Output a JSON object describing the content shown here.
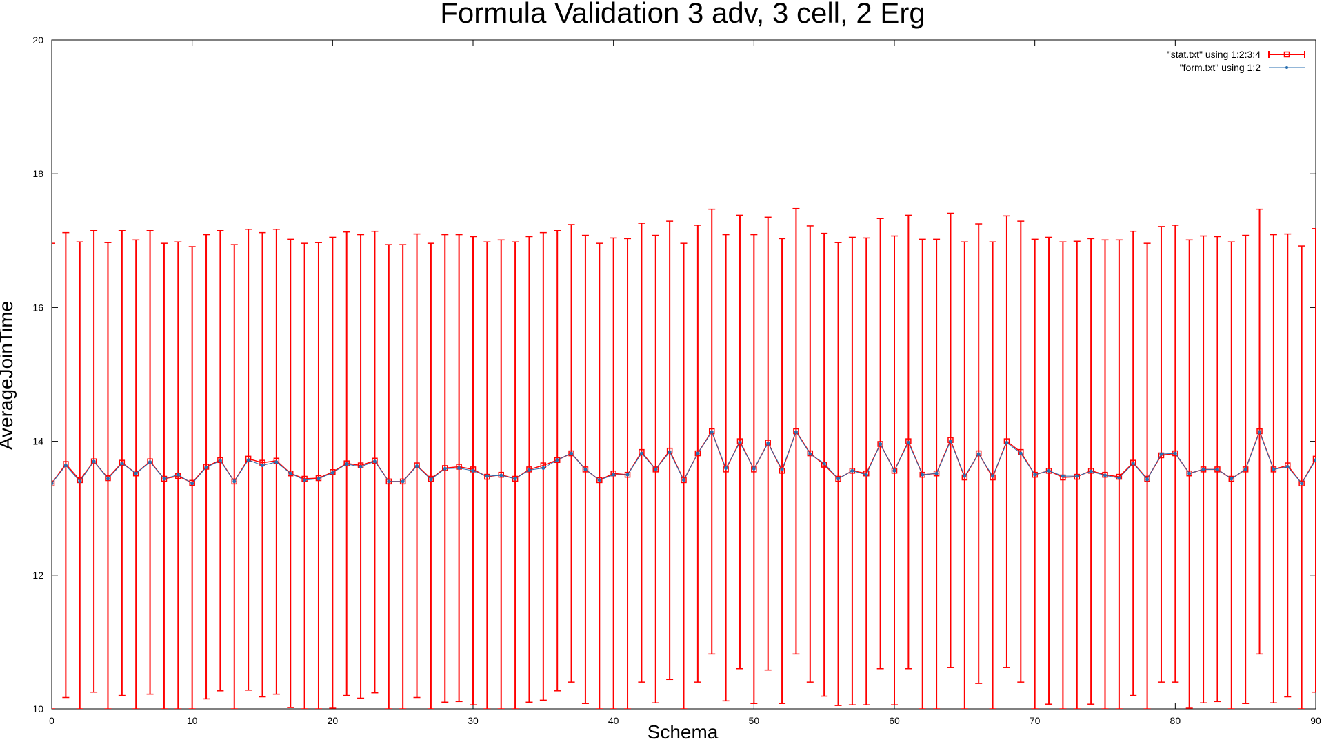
{
  "chart_data": {
    "type": "line",
    "title": "Formula Validation 3 adv, 3 cell, 2 Erg",
    "xlabel": "Schema",
    "ylabel": "AverageJoinTime",
    "xlim": [
      0,
      90
    ],
    "ylim": [
      10,
      20
    ],
    "xticks": [
      0,
      10,
      20,
      30,
      40,
      50,
      60,
      70,
      80,
      90
    ],
    "yticks": [
      10,
      12,
      14,
      16,
      18,
      20
    ],
    "grid": false,
    "legend_position": "top-right",
    "series": [
      {
        "name": "\"stat.txt\" using 1:2:3:4",
        "style": "yerrorbars-lines",
        "color": "#ff0000",
        "marker": "square",
        "x": [
          0,
          1,
          2,
          3,
          4,
          5,
          6,
          7,
          8,
          9,
          10,
          11,
          12,
          13,
          14,
          15,
          16,
          17,
          18,
          19,
          20,
          21,
          22,
          23,
          24,
          25,
          26,
          27,
          28,
          29,
          30,
          31,
          32,
          33,
          34,
          35,
          36,
          37,
          38,
          39,
          40,
          41,
          42,
          43,
          44,
          45,
          46,
          47,
          48,
          49,
          50,
          51,
          52,
          53,
          54,
          55,
          56,
          57,
          58,
          59,
          60,
          61,
          62,
          63,
          64,
          65,
          66,
          67,
          68,
          69,
          70,
          71,
          72,
          73,
          74,
          75,
          76,
          77,
          78,
          79,
          80,
          81,
          82,
          83,
          84,
          85,
          86,
          87,
          88,
          89,
          90
        ],
        "y": [
          13.37,
          13.66,
          13.42,
          13.7,
          13.45,
          13.68,
          13.52,
          13.7,
          13.44,
          13.48,
          13.38,
          13.62,
          13.72,
          13.4,
          13.74,
          13.68,
          13.71,
          13.52,
          13.44,
          13.45,
          13.54,
          13.67,
          13.64,
          13.71,
          13.4,
          13.4,
          13.64,
          13.44,
          13.6,
          13.62,
          13.58,
          13.47,
          13.5,
          13.44,
          13.58,
          13.64,
          13.72,
          13.82,
          13.58,
          13.42,
          13.52,
          13.5,
          13.84,
          13.58,
          13.86,
          13.42,
          13.82,
          14.15,
          13.58,
          14.0,
          13.58,
          13.98,
          13.56,
          14.15,
          13.82,
          13.65,
          13.44,
          13.56,
          13.52,
          13.96,
          13.56,
          14.0,
          13.5,
          13.52,
          14.02,
          13.46,
          13.82,
          13.46,
          14.0,
          13.84,
          13.5,
          13.56,
          13.46,
          13.47,
          13.56,
          13.5,
          13.47,
          13.68,
          13.44,
          13.79,
          13.82,
          13.52,
          13.58,
          13.58,
          13.44,
          13.58,
          14.15,
          13.58,
          13.64,
          13.37,
          13.74
        ],
        "ylow": [
          10.0,
          10.17,
          10.0,
          10.25,
          10.0,
          10.2,
          10.0,
          10.22,
          10.0,
          10.0,
          10.0,
          10.15,
          10.27,
          10.0,
          10.28,
          10.18,
          10.22,
          10.02,
          10.0,
          10.0,
          10.01,
          10.2,
          10.16,
          10.24,
          10.0,
          10.0,
          10.17,
          10.0,
          10.1,
          10.11,
          10.06,
          10.0,
          10.0,
          10.0,
          10.1,
          10.13,
          10.27,
          10.4,
          10.08,
          10.0,
          10.0,
          10.0,
          10.4,
          10.09,
          10.44,
          10.0,
          10.4,
          10.82,
          10.12,
          10.6,
          10.08,
          10.58,
          10.08,
          10.82,
          10.4,
          10.19,
          10.05,
          10.06,
          10.06,
          10.6,
          10.06,
          10.6,
          10.0,
          10.0,
          10.62,
          10.0,
          10.38,
          10.0,
          10.62,
          10.4,
          10.0,
          10.07,
          10.0,
          10.0,
          10.07,
          10.0,
          10.0,
          10.2,
          10.0,
          10.4,
          10.4,
          10.01,
          10.09,
          10.11,
          10.0,
          10.08,
          10.82,
          10.09,
          10.18,
          10.0,
          10.25
        ],
        "yhigh": [
          16.96,
          17.12,
          16.98,
          17.15,
          16.97,
          17.15,
          17.01,
          17.15,
          16.96,
          16.98,
          16.91,
          17.09,
          17.15,
          16.94,
          17.17,
          17.12,
          17.17,
          17.02,
          16.96,
          16.97,
          17.05,
          17.13,
          17.09,
          17.14,
          16.94,
          16.94,
          17.1,
          16.96,
          17.09,
          17.09,
          17.06,
          16.98,
          17.01,
          16.98,
          17.06,
          17.12,
          17.15,
          17.24,
          17.08,
          16.96,
          17.04,
          17.03,
          17.26,
          17.08,
          17.29,
          16.96,
          17.23,
          17.47,
          17.09,
          17.38,
          17.09,
          17.35,
          17.03,
          17.48,
          17.22,
          17.11,
          16.97,
          17.05,
          17.04,
          17.33,
          17.07,
          17.38,
          17.02,
          17.02,
          17.41,
          16.98,
          17.25,
          16.98,
          17.37,
          17.29,
          17.02,
          17.05,
          16.98,
          16.99,
          17.03,
          17.01,
          17.01,
          17.14,
          16.96,
          17.21,
          17.23,
          17.01,
          17.07,
          17.06,
          16.98,
          17.08,
          17.47,
          17.09,
          17.1,
          16.92,
          17.18
        ]
      },
      {
        "name": "\"form.txt\" using 1:2",
        "style": "linespoints",
        "color": "#2a6fb0",
        "marker": "circle",
        "x": [
          0,
          1,
          2,
          3,
          4,
          5,
          6,
          7,
          8,
          9,
          10,
          11,
          12,
          13,
          14,
          15,
          16,
          17,
          18,
          19,
          20,
          21,
          22,
          23,
          24,
          25,
          26,
          27,
          28,
          29,
          30,
          31,
          32,
          33,
          34,
          35,
          36,
          37,
          38,
          39,
          40,
          41,
          42,
          43,
          44,
          45,
          46,
          47,
          48,
          49,
          50,
          51,
          52,
          53,
          54,
          55,
          56,
          57,
          58,
          59,
          60,
          61,
          62,
          63,
          64,
          65,
          66,
          67,
          68,
          69,
          70,
          71,
          72,
          73,
          74,
          75,
          76,
          77,
          78,
          79,
          80,
          81,
          82,
          83,
          84,
          85,
          86,
          87,
          88,
          89,
          90
        ],
        "y": [
          13.37,
          13.64,
          13.4,
          13.7,
          13.44,
          13.67,
          13.52,
          13.69,
          13.44,
          13.5,
          13.37,
          13.61,
          13.71,
          13.4,
          13.72,
          13.64,
          13.69,
          13.52,
          13.42,
          13.44,
          13.53,
          13.66,
          13.62,
          13.7,
          13.4,
          13.4,
          13.63,
          13.43,
          13.59,
          13.6,
          13.56,
          13.48,
          13.49,
          13.44,
          13.57,
          13.6,
          13.72,
          13.82,
          13.58,
          13.42,
          13.5,
          13.5,
          13.82,
          13.58,
          13.84,
          13.42,
          13.82,
          14.14,
          13.6,
          13.98,
          13.59,
          13.97,
          13.58,
          14.14,
          13.81,
          13.67,
          13.44,
          13.56,
          13.5,
          13.96,
          13.56,
          13.98,
          13.5,
          13.52,
          14.0,
          13.48,
          13.81,
          13.48,
          13.98,
          13.82,
          13.5,
          13.56,
          13.48,
          13.48,
          13.55,
          13.49,
          13.45,
          13.67,
          13.43,
          13.81,
          13.82,
          13.52,
          13.58,
          13.58,
          13.44,
          13.58,
          14.14,
          13.58,
          13.62,
          13.37,
          13.72
        ]
      }
    ]
  }
}
